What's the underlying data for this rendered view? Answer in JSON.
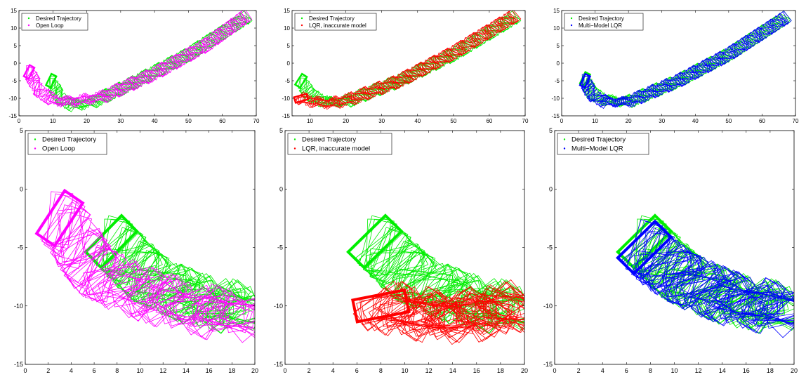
{
  "colors": {
    "desired": "#00ee00",
    "open_loop": "#ff00ff",
    "lqr": "#ff0000",
    "mm_lqr": "#0000ff",
    "axis": "#000000"
  },
  "chart_data": [
    {
      "type": "scatter",
      "panel": "top-left",
      "xlim": [
        0,
        70
      ],
      "ylim": [
        -15,
        15
      ],
      "xticks": [
        "0",
        "10",
        "20",
        "30",
        "40",
        "50",
        "60",
        "70"
      ],
      "yticks": [
        "-15",
        "-10",
        "-5",
        "0",
        "5",
        "10",
        "15"
      ],
      "legend": [
        "Desired Trajectory",
        "Open Loop"
      ],
      "legend_position": "top-left",
      "series": [
        {
          "name": "Desired Trajectory",
          "color": "#00ee00",
          "trajectory": [
            [
              9.5,
              -5.0
            ],
            [
              12.0,
              -10.0
            ],
            [
              16.0,
              -12.0
            ],
            [
              22.0,
              -11.0
            ],
            [
              35.0,
              -5.0
            ],
            [
              50.0,
              2.5
            ],
            [
              67.0,
              13.0
            ]
          ]
        },
        {
          "name": "Open Loop",
          "color": "#ff00ff",
          "trajectory": [
            [
              3.0,
              -2.5
            ],
            [
              6.0,
              -8.0
            ],
            [
              10.0,
              -10.5
            ],
            [
              15.0,
              -11.0
            ],
            [
              25.0,
              -9.5
            ],
            [
              40.0,
              -3.0
            ],
            [
              55.0,
              5.0
            ],
            [
              67.0,
              13.5
            ]
          ]
        }
      ]
    },
    {
      "type": "scatter",
      "panel": "top-middle",
      "xlim": [
        5,
        70
      ],
      "ylim": [
        -15,
        15
      ],
      "xticks": [
        "10",
        "20",
        "30",
        "40",
        "50",
        "60",
        "70"
      ],
      "yticks": [
        "-15",
        "-10",
        "-5",
        "0",
        "5",
        "10",
        "15"
      ],
      "legend": [
        "Desired Trajectory",
        "LQR, inaccurate model"
      ],
      "legend_position": "top-left",
      "series": [
        {
          "name": "Desired Trajectory",
          "color": "#00ee00",
          "trajectory": [
            [
              7.5,
              -5.0
            ],
            [
              10.0,
              -9.0
            ],
            [
              14.0,
              -11.0
            ],
            [
              20.0,
              -11.0
            ],
            [
              35.0,
              -5.0
            ],
            [
              50.0,
              2.5
            ],
            [
              67.0,
              13.0
            ]
          ]
        },
        {
          "name": "LQR, inaccurate model",
          "color": "#ff0000",
          "trajectory": [
            [
              7.5,
              -10.0
            ],
            [
              11.0,
              -11.0
            ],
            [
              16.0,
              -11.5
            ],
            [
              22.0,
              -10.0
            ],
            [
              35.0,
              -5.0
            ],
            [
              50.0,
              3.0
            ],
            [
              67.0,
              13.5
            ]
          ]
        }
      ]
    },
    {
      "type": "scatter",
      "panel": "top-right",
      "xlim": [
        0,
        70
      ],
      "ylim": [
        -15,
        15
      ],
      "xticks": [
        "0",
        "10",
        "20",
        "30",
        "40",
        "50",
        "60",
        "70"
      ],
      "yticks": [
        "-15",
        "-10",
        "-5",
        "0",
        "5",
        "10",
        "15"
      ],
      "legend": [
        "Desired Trajectory",
        "Multi−Model LQR"
      ],
      "legend_position": "top-left",
      "series": [
        {
          "name": "Desired Trajectory",
          "color": "#00ee00",
          "trajectory": [
            [
              7.0,
              -4.5
            ],
            [
              9.0,
              -8.5
            ],
            [
              13.0,
              -10.5
            ],
            [
              20.0,
              -11.0
            ],
            [
              35.0,
              -5.0
            ],
            [
              50.0,
              2.5
            ],
            [
              67.0,
              13.0
            ]
          ]
        },
        {
          "name": "Multi−Model LQR",
          "color": "#0000ff",
          "trajectory": [
            [
              7.0,
              -5.0
            ],
            [
              9.0,
              -9.0
            ],
            [
              13.0,
              -11.0
            ],
            [
              20.0,
              -11.0
            ],
            [
              35.0,
              -5.0
            ],
            [
              50.0,
              2.5
            ],
            [
              67.0,
              13.0
            ]
          ]
        }
      ]
    },
    {
      "type": "scatter",
      "panel": "bottom-left",
      "xlim": [
        0,
        20
      ],
      "ylim": [
        -15,
        5
      ],
      "xticks": [
        "0",
        "2",
        "4",
        "6",
        "8",
        "10",
        "12",
        "14",
        "16",
        "18",
        "20"
      ],
      "yticks": [
        "-15",
        "-10",
        "-5",
        "0",
        "5"
      ],
      "legend": [
        "Desired Trajectory",
        "Open Loop"
      ],
      "legend_position": "top-left",
      "series": [
        {
          "name": "Desired Trajectory",
          "color": "#00ee00",
          "trajectory": [
            [
              7.5,
              -4.5
            ],
            [
              9.0,
              -6.0
            ],
            [
              10.5,
              -7.5
            ],
            [
              12.5,
              -8.5
            ],
            [
              15.0,
              -9.5
            ],
            [
              17.5,
              -10.0
            ],
            [
              20.0,
              -10.5
            ]
          ]
        },
        {
          "name": "Open Loop",
          "color": "#ff00ff",
          "trajectory": [
            [
              3.0,
              -2.5
            ],
            [
              4.0,
              -4.0
            ],
            [
              6.0,
              -7.0
            ],
            [
              9.0,
              -8.5
            ],
            [
              12.0,
              -9.5
            ],
            [
              16.0,
              -10.5
            ],
            [
              20.0,
              -11.0
            ]
          ]
        }
      ]
    },
    {
      "type": "scatter",
      "panel": "bottom-middle",
      "xlim": [
        0,
        20
      ],
      "ylim": [
        -15,
        5
      ],
      "xticks": [
        "0",
        "2",
        "4",
        "6",
        "8",
        "10",
        "12",
        "14",
        "16",
        "18",
        "20"
      ],
      "yticks": [
        "-15",
        "-10",
        "-5",
        "0",
        "5"
      ],
      "legend": [
        "Desired Trajectory",
        "LQR, inaccurate model"
      ],
      "legend_position": "top-left",
      "series": [
        {
          "name": "Desired Trajectory",
          "color": "#00ee00",
          "trajectory": [
            [
              7.5,
              -4.5
            ],
            [
              9.0,
              -6.0
            ],
            [
              10.5,
              -7.5
            ],
            [
              12.5,
              -8.5
            ],
            [
              15.0,
              -9.5
            ],
            [
              17.5,
              -10.0
            ],
            [
              20.0,
              -10.5
            ]
          ]
        },
        {
          "name": "LQR, inaccurate model",
          "color": "#ff0000",
          "trajectory": [
            [
              8.0,
              -10.0
            ],
            [
              10.5,
              -10.5
            ],
            [
              13.0,
              -11.0
            ],
            [
              15.5,
              -10.8
            ],
            [
              18.0,
              -10.3
            ],
            [
              20.0,
              -10.0
            ]
          ]
        }
      ]
    },
    {
      "type": "scatter",
      "panel": "bottom-right",
      "xlim": [
        0,
        20
      ],
      "ylim": [
        -15,
        5
      ],
      "xticks": [
        "0",
        "2",
        "4",
        "6",
        "8",
        "10",
        "12",
        "14",
        "16",
        "18",
        "20"
      ],
      "yticks": [
        "-15",
        "-10",
        "-5",
        "0",
        "5"
      ],
      "legend": [
        "Desired Trajectory",
        "Multi−Model LQR"
      ],
      "legend_position": "top-left",
      "series": [
        {
          "name": "Desired Trajectory",
          "color": "#00ee00",
          "trajectory": [
            [
              7.5,
              -4.5
            ],
            [
              9.0,
              -6.0
            ],
            [
              10.5,
              -7.5
            ],
            [
              12.5,
              -8.5
            ],
            [
              15.0,
              -9.5
            ],
            [
              17.5,
              -10.0
            ],
            [
              20.0,
              -10.5
            ]
          ]
        },
        {
          "name": "Multi−Model LQR",
          "color": "#0000ff",
          "trajectory": [
            [
              7.5,
              -5.0
            ],
            [
              9.0,
              -6.5
            ],
            [
              10.5,
              -7.5
            ],
            [
              12.5,
              -8.5
            ],
            [
              15.0,
              -9.5
            ],
            [
              17.5,
              -10.0
            ],
            [
              20.0,
              -10.5
            ]
          ]
        }
      ]
    }
  ]
}
